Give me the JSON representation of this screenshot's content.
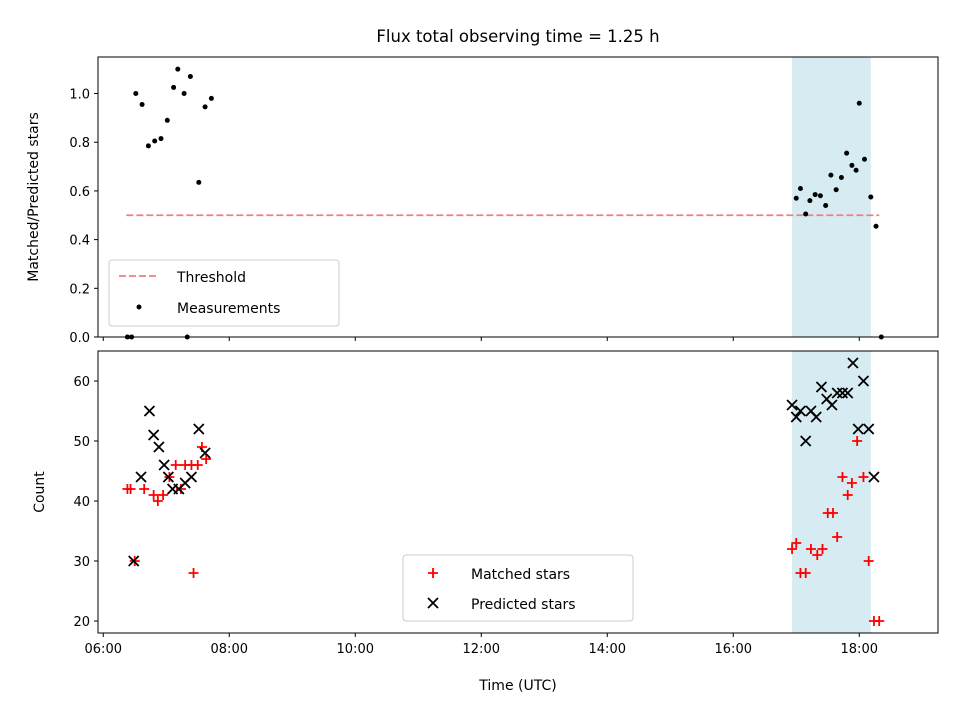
{
  "figure": {
    "title": "Flux total observing time = 1.25 h",
    "shaded_window": [
      "16:56",
      "18:11"
    ],
    "shade_color": "#add8e6"
  },
  "chart_data": [
    {
      "type": "scatter",
      "ylabel": "Matched/Predicted stars",
      "xlim": [
        "05:55",
        "19:15"
      ],
      "ylim": [
        0,
        1.15
      ],
      "yticks": [
        "0.0",
        "0.2",
        "0.4",
        "0.6",
        "0.8",
        "1.0"
      ],
      "legend_placement": "lower-left",
      "threshold": {
        "name": "Threshold",
        "value": 0.5,
        "x_range": [
          "06:22",
          "18:19"
        ],
        "color": "#f08080"
      },
      "series": [
        {
          "name": "Measurements",
          "color": "#000000",
          "points": [
            [
              "06:23",
              0.0
            ],
            [
              "06:27",
              0.0
            ],
            [
              "06:31",
              1.0
            ],
            [
              "06:37",
              0.955
            ],
            [
              "06:43",
              0.785
            ],
            [
              "06:49",
              0.805
            ],
            [
              "06:55",
              0.815
            ],
            [
              "07:01",
              0.89
            ],
            [
              "07:07",
              1.025
            ],
            [
              "07:11",
              1.1
            ],
            [
              "07:17",
              1.0
            ],
            [
              "07:23",
              1.07
            ],
            [
              "07:20",
              0.0
            ],
            [
              "07:31",
              0.635
            ],
            [
              "07:37",
              0.945
            ],
            [
              "07:43",
              0.98
            ],
            [
              "17:00",
              0.57
            ],
            [
              "17:04",
              0.61
            ],
            [
              "17:09",
              0.505
            ],
            [
              "17:13",
              0.56
            ],
            [
              "17:18",
              0.585
            ],
            [
              "17:23",
              0.58
            ],
            [
              "17:28",
              0.54
            ],
            [
              "17:33",
              0.665
            ],
            [
              "17:38",
              0.605
            ],
            [
              "17:43",
              0.655
            ],
            [
              "17:48",
              0.755
            ],
            [
              "17:53",
              0.705
            ],
            [
              "17:57",
              0.685
            ],
            [
              "18:00",
              0.96
            ],
            [
              "18:05",
              0.73
            ],
            [
              "18:11",
              0.575
            ],
            [
              "18:16",
              0.455
            ],
            [
              "18:21",
              0.0
            ]
          ]
        }
      ]
    },
    {
      "type": "scatter",
      "ylabel": "Count",
      "xlabel": "Time (UTC)",
      "xlim": [
        "05:55",
        "19:15"
      ],
      "ylim": [
        18,
        65
      ],
      "yticks": [
        "20",
        "30",
        "40",
        "50",
        "60"
      ],
      "xticks": [
        "06:00",
        "08:00",
        "10:00",
        "12:00",
        "14:00",
        "16:00",
        "18:00"
      ],
      "legend_placement": "lower-center",
      "series": [
        {
          "name": "Matched stars",
          "marker": "plus",
          "color": "#ff0000",
          "points": [
            [
              "06:23",
              42
            ],
            [
              "06:26",
              42
            ],
            [
              "06:30",
              30
            ],
            [
              "06:39",
              42
            ],
            [
              "06:48",
              41
            ],
            [
              "06:52",
              40
            ],
            [
              "06:57",
              41
            ],
            [
              "07:03",
              44
            ],
            [
              "07:09",
              46
            ],
            [
              "07:14",
              42
            ],
            [
              "07:18",
              46
            ],
            [
              "07:24",
              46
            ],
            [
              "07:30",
              46
            ],
            [
              "07:26",
              28
            ],
            [
              "07:34",
              49
            ],
            [
              "07:38",
              47
            ],
            [
              "16:56",
              32
            ],
            [
              "17:00",
              33
            ],
            [
              "17:04",
              28
            ],
            [
              "17:09",
              28
            ],
            [
              "17:14",
              32
            ],
            [
              "17:20",
              31
            ],
            [
              "17:25",
              32
            ],
            [
              "17:30",
              38
            ],
            [
              "17:35",
              38
            ],
            [
              "17:39",
              34
            ],
            [
              "17:44",
              44
            ],
            [
              "17:49",
              41
            ],
            [
              "17:53",
              43
            ],
            [
              "17:58",
              50
            ],
            [
              "18:04",
              44
            ],
            [
              "18:09",
              30
            ],
            [
              "18:14",
              20
            ],
            [
              "18:19",
              20
            ]
          ]
        },
        {
          "name": "Predicted stars",
          "marker": "x",
          "color": "#000000",
          "points": [
            [
              "06:29",
              30
            ],
            [
              "06:36",
              44
            ],
            [
              "06:44",
              55
            ],
            [
              "06:48",
              51
            ],
            [
              "06:53",
              49
            ],
            [
              "06:58",
              46
            ],
            [
              "07:02",
              44
            ],
            [
              "07:06",
              42
            ],
            [
              "07:12",
              42
            ],
            [
              "07:18",
              43
            ],
            [
              "07:24",
              44
            ],
            [
              "07:31",
              52
            ],
            [
              "07:37",
              48
            ],
            [
              "16:56",
              56
            ],
            [
              "17:00",
              54
            ],
            [
              "17:04",
              55
            ],
            [
              "17:09",
              50
            ],
            [
              "17:14",
              55
            ],
            [
              "17:19",
              54
            ],
            [
              "17:24",
              59
            ],
            [
              "17:29",
              57
            ],
            [
              "17:34",
              56
            ],
            [
              "17:39",
              58
            ],
            [
              "17:44",
              58
            ],
            [
              "17:49",
              58
            ],
            [
              "17:54",
              63
            ],
            [
              "17:59",
              52
            ],
            [
              "18:04",
              60
            ],
            [
              "18:09",
              52
            ],
            [
              "18:14",
              44
            ]
          ]
        }
      ]
    }
  ]
}
